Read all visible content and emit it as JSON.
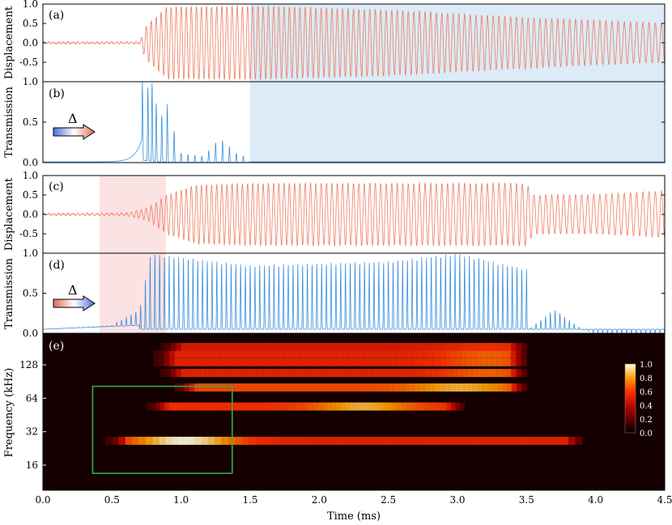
{
  "chart_data": [
    {
      "panel": "(a)",
      "type": "line",
      "ylabel": "Displacement",
      "ylim": [
        -1.0,
        1.0
      ],
      "yticks": [
        "1.0",
        "0.5",
        "0.0",
        "-0.5"
      ],
      "xlim": [
        0.0,
        4.5
      ],
      "shaded_region": {
        "x": [
          1.5,
          4.5
        ],
        "color": "#dcebf7"
      },
      "series": [
        {
          "color": "#ef7b5c",
          "amplitude_envelope": [
            [
              0.0,
              0.02
            ],
            [
              0.7,
              0.02
            ],
            [
              0.75,
              0.45
            ],
            [
              0.9,
              0.93
            ],
            [
              1.5,
              0.95
            ],
            [
              2.5,
              0.85
            ],
            [
              3.5,
              0.65
            ],
            [
              4.5,
              0.5
            ]
          ]
        }
      ]
    },
    {
      "panel": "(b)",
      "type": "line",
      "ylabel": "Transmission",
      "ylim": [
        0.0,
        1.0
      ],
      "yticks": [
        "1.0",
        "0.5",
        "0.0"
      ],
      "xlim": [
        0.0,
        4.5
      ],
      "shaded_region": {
        "x": [
          1.5,
          4.5
        ],
        "color": "#dcebf7"
      },
      "annotation": {
        "symbol": "Δ",
        "arrow_from": "blue",
        "arrow_to": "red"
      },
      "series": [
        {
          "color": "#3a8fdd",
          "peaks": [
            [
              0.72,
              1.0
            ],
            [
              0.76,
              0.95
            ],
            [
              0.79,
              1.0
            ],
            [
              0.82,
              0.75
            ],
            [
              0.86,
              0.6
            ],
            [
              0.9,
              0.72
            ],
            [
              0.95,
              0.4
            ],
            [
              1.0,
              0.12
            ],
            [
              1.05,
              0.1
            ],
            [
              1.1,
              0.09
            ],
            [
              1.15,
              0.08
            ],
            [
              1.2,
              0.15
            ],
            [
              1.25,
              0.25
            ],
            [
              1.3,
              0.28
            ],
            [
              1.35,
              0.2
            ],
            [
              1.4,
              0.12
            ],
            [
              1.45,
              0.08
            ]
          ]
        }
      ]
    },
    {
      "panel": "(c)",
      "type": "line",
      "ylabel": "Displacement",
      "ylim": [
        -1.0,
        1.0
      ],
      "yticks": [
        "1.0",
        "0.5",
        "0.0",
        "-0.5"
      ],
      "xlim": [
        0.0,
        4.5
      ],
      "shaded_region": {
        "x": [
          0.41,
          0.89
        ],
        "color": "#fce3e3"
      },
      "series": [
        {
          "color": "#ef7b5c",
          "amplitude_envelope": [
            [
              0.0,
              0.02
            ],
            [
              0.6,
              0.03
            ],
            [
              0.75,
              0.15
            ],
            [
              0.9,
              0.5
            ],
            [
              1.1,
              0.75
            ],
            [
              1.5,
              0.8
            ],
            [
              3.5,
              0.8
            ],
            [
              3.55,
              0.5
            ],
            [
              4.0,
              0.5
            ],
            [
              4.5,
              0.6
            ]
          ]
        }
      ]
    },
    {
      "panel": "(d)",
      "type": "line",
      "ylabel": "Transmission",
      "ylim": [
        0.0,
        1.0
      ],
      "yticks": [
        "1.0",
        "0.5",
        "0.0"
      ],
      "xlim": [
        0.0,
        4.5
      ],
      "shaded_region": {
        "x": [
          0.41,
          0.89
        ],
        "color": "#fce3e3"
      },
      "annotation": {
        "symbol": "Δ",
        "arrow_from": "red",
        "arrow_to": "blue"
      },
      "series": [
        {
          "color": "#3a8fdd",
          "peak_envelope": [
            [
              0.0,
              0.05
            ],
            [
              0.5,
              0.1
            ],
            [
              0.7,
              0.3
            ],
            [
              0.78,
              1.0
            ],
            [
              1.0,
              0.95
            ],
            [
              1.5,
              0.85
            ],
            [
              2.5,
              0.9
            ],
            [
              3.0,
              1.0
            ],
            [
              3.5,
              0.8
            ],
            [
              3.52,
              0.05
            ],
            [
              3.7,
              0.3
            ],
            [
              3.9,
              0.05
            ],
            [
              4.0,
              0.0
            ]
          ]
        }
      ]
    },
    {
      "panel": "(e)",
      "type": "heatmap",
      "ylabel": "Frequency (kHz)",
      "xlabel": "Time (ms)",
      "yscale": "log2",
      "yticks": [
        "128",
        "64",
        "32",
        "16"
      ],
      "xticks": [
        "0.0",
        "0.5",
        "1.0",
        "1.5",
        "2.0",
        "2.5",
        "3.0",
        "3.5",
        "4.0",
        "4.5"
      ],
      "colorbar": {
        "ticks": [
          "1.0",
          "0.8",
          "0.6",
          "0.4",
          "0.2",
          "0.0"
        ],
        "colormap": "hot"
      },
      "highlight_box": {
        "x": [
          0.36,
          1.37
        ],
        "y_khz": [
          13.5,
          82
        ],
        "color": "#3aa84a"
      },
      "bands": [
        {
          "y_khz": 26.5,
          "t": [
            0.45,
            3.9
          ],
          "intensity": 0.55,
          "peak_t": 1.0,
          "peak": 1.0
        },
        {
          "y_khz": 54,
          "t": [
            0.75,
            3.05
          ],
          "intensity": 0.6,
          "peak_t": 2.3,
          "peak": 0.85
        },
        {
          "y_khz": 80,
          "t": [
            0.95,
            3.5
          ],
          "intensity": 0.65,
          "peak_t": 3.0,
          "peak": 0.85
        },
        {
          "y_khz": 108,
          "t": [
            0.85,
            3.5
          ],
          "intensity": 0.55,
          "peak_t": 3.2,
          "peak": 0.7
        },
        {
          "y_khz": 135,
          "t": [
            0.8,
            3.5
          ],
          "intensity": 0.55,
          "peak_t": 3.2,
          "peak": 0.7
        },
        {
          "y_khz": 160,
          "t": [
            0.8,
            3.5
          ],
          "intensity": 0.55,
          "peak_t": 3.2,
          "peak": 0.7
        },
        {
          "y_khz": 185,
          "t": [
            0.85,
            3.5
          ],
          "intensity": 0.5,
          "peak_t": 3.2,
          "peak": 0.6
        }
      ]
    }
  ]
}
